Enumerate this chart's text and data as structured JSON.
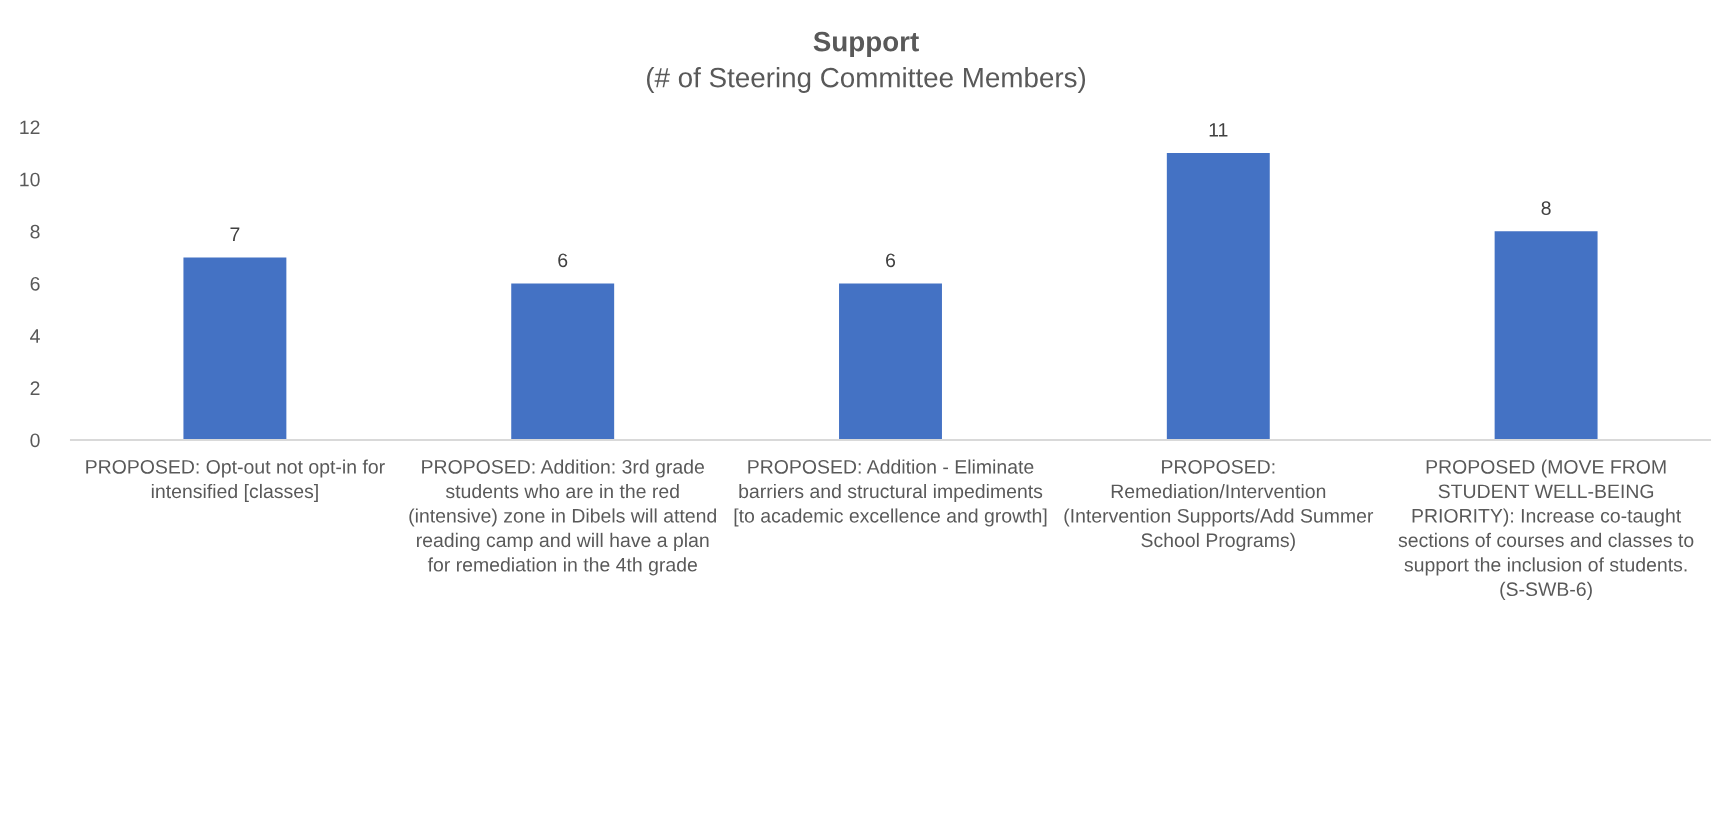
{
  "chart_data": {
    "type": "bar",
    "title": "Support",
    "subtitle": "(# of Steering Committee Members)",
    "categories": [
      "PROPOSED: Opt-out not opt-in for intensified [classes]",
      "PROPOSED: Addition: 3rd grade students who are in the red (intensive) zone in Dibels will attend reading camp and will have a plan for remediation in the 4th grade",
      "PROPOSED: Addition - Eliminate barriers and structural impediments [to academic excellence and growth]",
      "PROPOSED: Remediation/Intervention (Intervention Supports/Add Summer School Programs)",
      "PROPOSED (MOVE FROM STUDENT WELL-BEING PRIORITY): Increase co-taught sections of courses and classes to support the inclusion of students. (S-SWB-6)"
    ],
    "values": [
      7,
      6,
      6,
      11,
      8
    ],
    "color": "#4472c4",
    "ylim": [
      0,
      12
    ],
    "yticks": [
      0,
      2,
      4,
      6,
      8,
      10,
      12
    ],
    "data_labels": true,
    "grid": false
  }
}
